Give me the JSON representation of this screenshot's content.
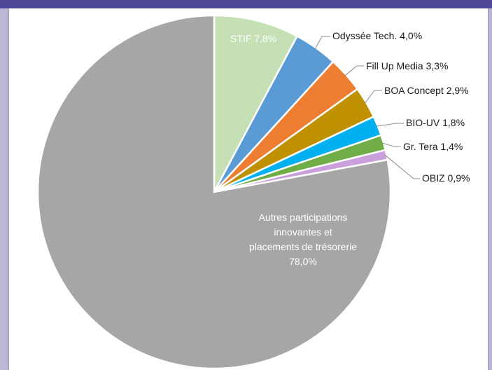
{
  "chart_data": {
    "type": "pie",
    "title": "",
    "slices": [
      {
        "label": "STIF",
        "value": 7.8,
        "display": "STIF 7,8%",
        "color": "#c5e0b4"
      },
      {
        "label": "Odyssée Tech.",
        "value": 4.0,
        "display": "Odyssée Tech. 4,0%",
        "color": "#5b9bd5"
      },
      {
        "label": "Fill Up Media",
        "value": 3.3,
        "display": "Fill Up Media 3,3%",
        "color": "#ed7d31"
      },
      {
        "label": "BOA Concept",
        "value": 2.9,
        "display": "BOA Concept 2,9%",
        "color": "#bf9000"
      },
      {
        "label": "BIO-UV",
        "value": 1.8,
        "display": "BIO-UV 1,8%",
        "color": "#00b0f0"
      },
      {
        "label": "Gr. Tera",
        "value": 1.4,
        "display": "Gr. Tera 1,4%",
        "color": "#70ad47"
      },
      {
        "label": "OBIZ",
        "value": 0.9,
        "display": "OBIZ 0,9%",
        "color": "#c9a0dc"
      },
      {
        "label": "Autres participations innovantes et placements de trésorerie",
        "value": 78.0,
        "display_lines": [
          "Autres participations",
          "innovantes et",
          "placements de trésorerie",
          "78,0%"
        ],
        "color": "#a6a6a6"
      }
    ]
  }
}
